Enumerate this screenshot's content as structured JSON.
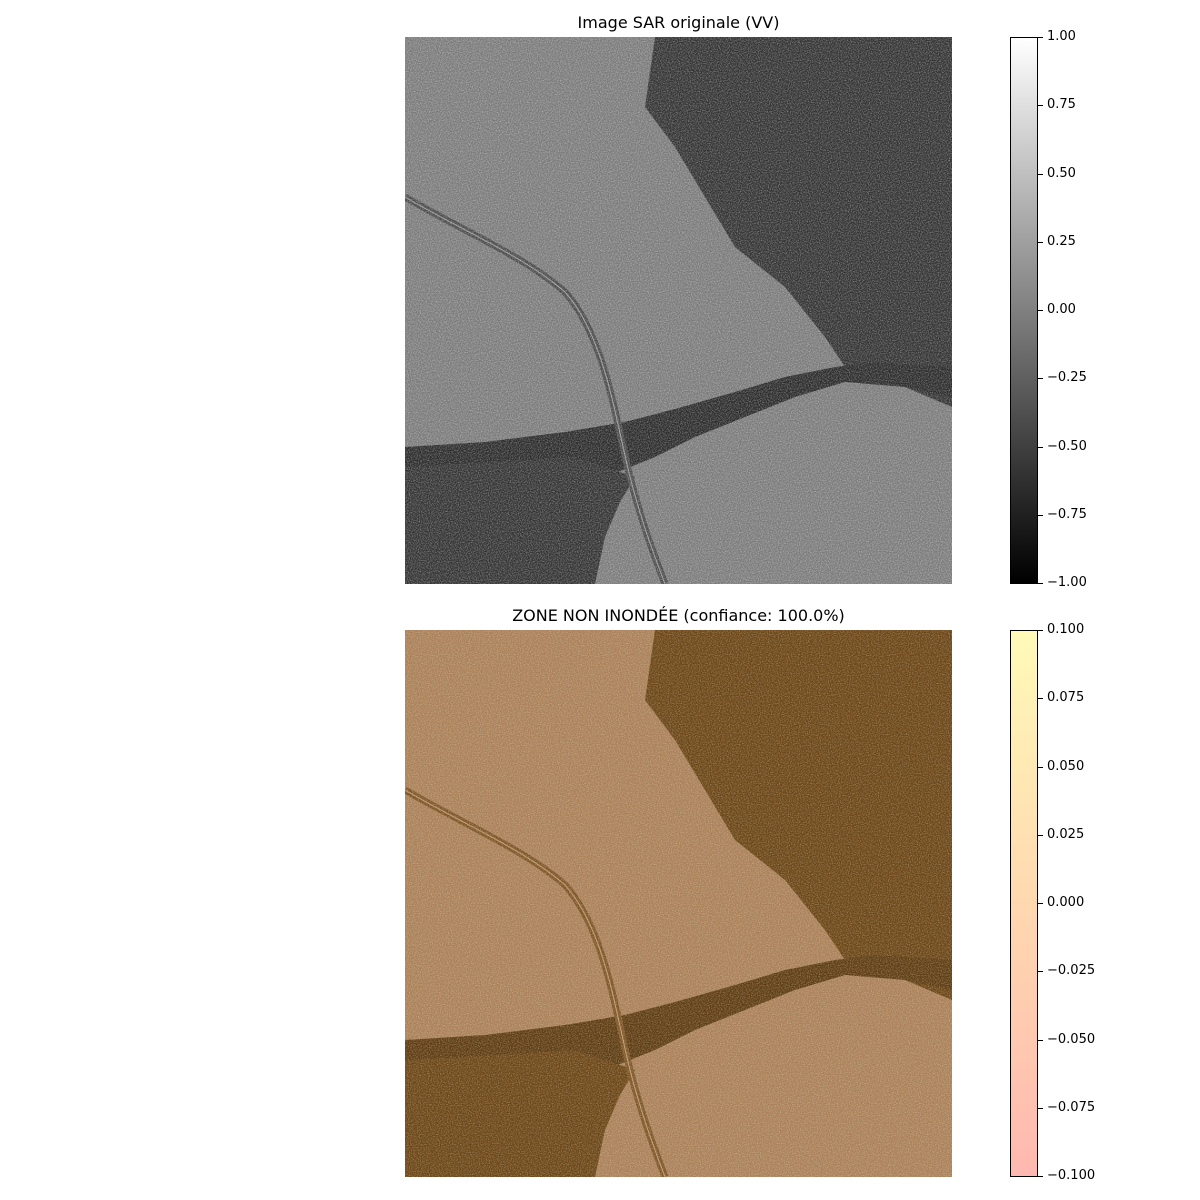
{
  "panels": [
    {
      "title": "Image SAR originale (VV)",
      "colorbar": {
        "colors": [
          "#000000",
          "#ffffff"
        ],
        "ticks": [
          "1.00",
          "0.75",
          "0.50",
          "0.25",
          "0.00",
          "−0.25",
          "−0.50",
          "−0.75",
          "−1.00"
        ]
      }
    },
    {
      "title": "ZONE NON INONDÉE (confiance: 100.0%)",
      "colorbar": {
        "colors": [
          "#ffb8b0",
          "#ffd8b0",
          "#fffab8"
        ],
        "ticks": [
          "0.100",
          "0.075",
          "0.050",
          "0.025",
          "0.000",
          "−0.025",
          "−0.050",
          "−0.075",
          "−0.100"
        ]
      }
    }
  ],
  "image_palette": {
    "sar": {
      "land": "#7a7a7a",
      "water": "#333333",
      "river": "#2b2b2b",
      "railway": "#4a4a4a"
    },
    "overlay": {
      "land": "#a98059",
      "water": "#6b4618",
      "river": "#5e3d14",
      "railway": "#7c5529"
    }
  }
}
